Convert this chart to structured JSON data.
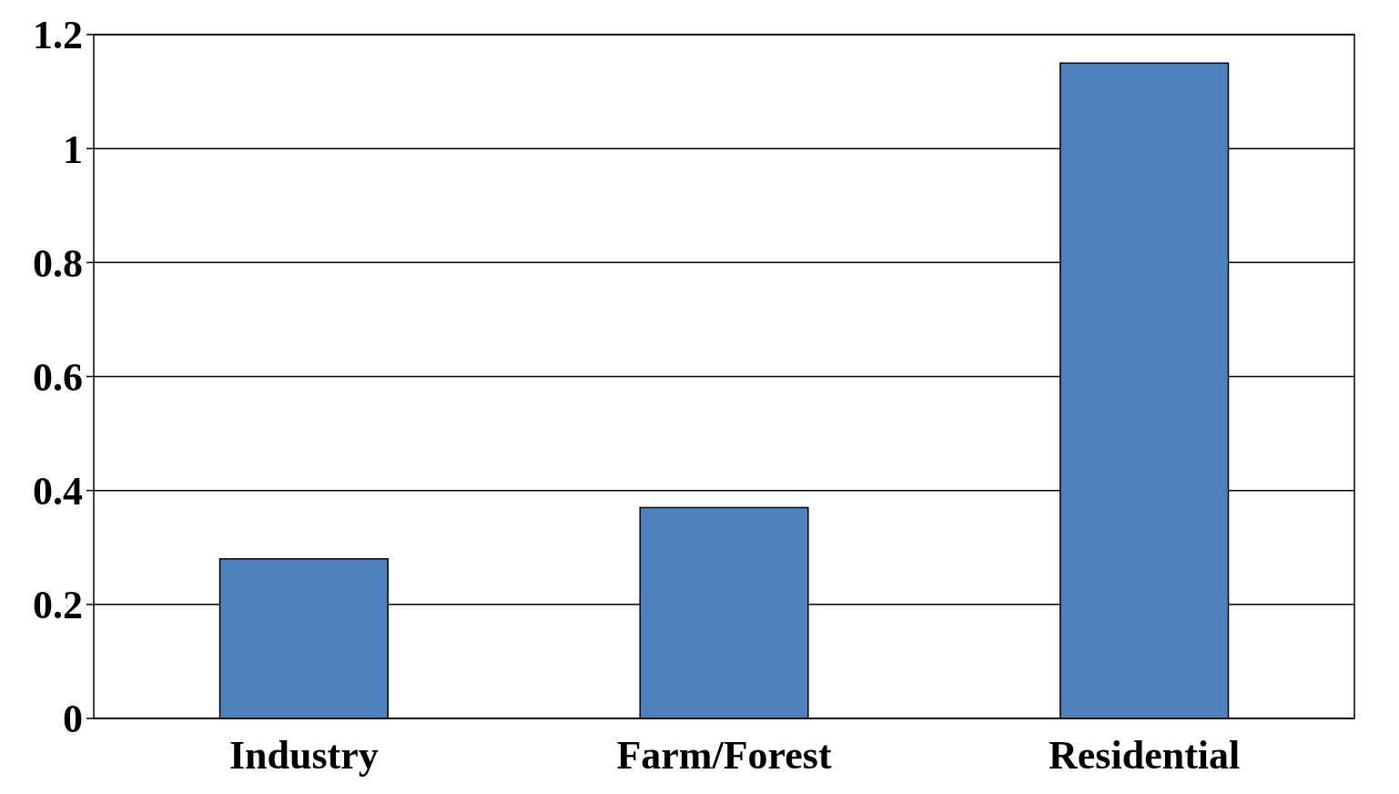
{
  "chart_data": {
    "type": "bar",
    "categories": [
      "Industry",
      "Farm/Forest",
      "Residential"
    ],
    "values": [
      0.28,
      0.37,
      1.15
    ],
    "color": "#4f81bd",
    "ylim": [
      0,
      1.2
    ],
    "yticks": [
      0,
      0.2,
      0.4,
      0.6,
      0.8,
      1,
      1.2
    ],
    "grid": "y"
  }
}
